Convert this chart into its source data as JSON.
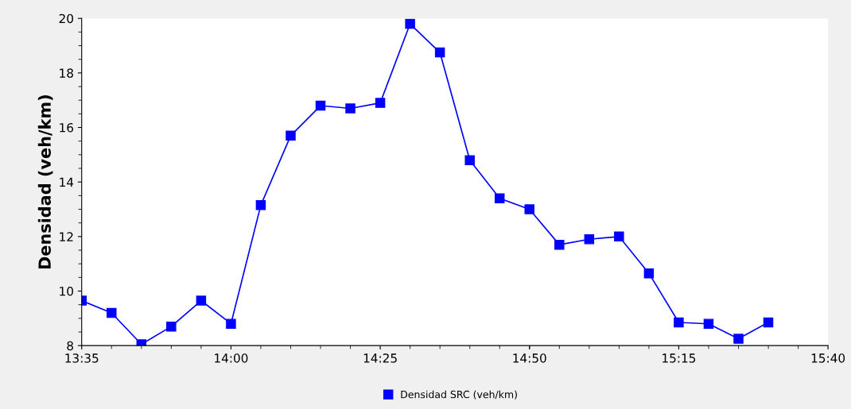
{
  "chart_data": {
    "type": "line",
    "ylabel": "Densidad (veh/km)",
    "x": [
      13.5833,
      13.6667,
      13.75,
      13.8333,
      13.9167,
      14,
      14.0833,
      14.1667,
      14.25,
      14.3333,
      14.4167,
      14.5,
      14.5833,
      14.6667,
      14.75,
      14.8333,
      14.9167,
      15,
      15.0833,
      15.1667,
      15.25,
      15.3333,
      15.4167,
      15.5
    ],
    "series": [
      {
        "name": "Densidad SRC (veh/km)",
        "color": "#0000ff",
        "values": [
          9.65,
          9.2,
          8.05,
          8.7,
          9.65,
          8.8,
          13.15,
          15.7,
          16.8,
          16.7,
          16.9,
          19.8,
          18.75,
          14.8,
          13.4,
          13.0,
          11.7,
          11.9,
          12.0,
          10.65,
          8.85,
          8.8,
          8.25,
          8.85
        ]
      }
    ],
    "xlim": [
      13.5833,
      15.6667
    ],
    "xticks": [
      {
        "value": 13.5833,
        "label": "13:35"
      },
      {
        "value": 14,
        "label": "14:00"
      },
      {
        "value": 14.4167,
        "label": "14:25"
      },
      {
        "value": 14.8333,
        "label": "14:50"
      },
      {
        "value": 15.25,
        "label": "15:15"
      },
      {
        "value": 15.6667,
        "label": "15:40"
      }
    ],
    "ylim": [
      8,
      20
    ],
    "yticks": [
      8,
      10,
      12,
      14,
      16,
      18,
      20
    ],
    "marker": "square",
    "line_style": "solid",
    "grid": false,
    "legend": "bottom"
  }
}
